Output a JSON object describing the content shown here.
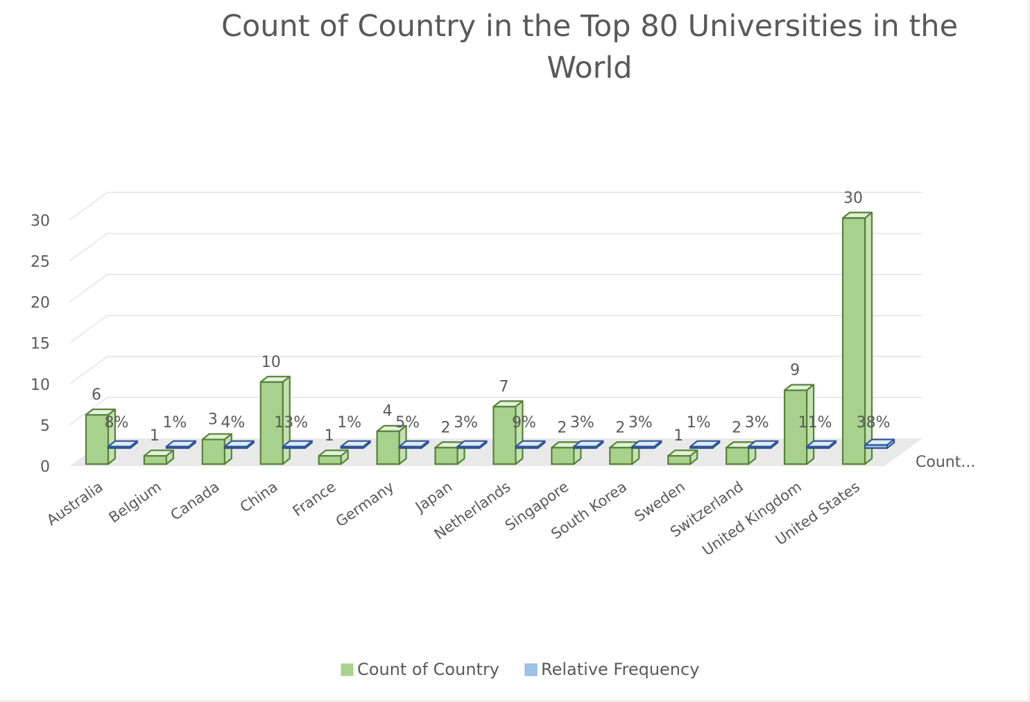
{
  "chart_data": {
    "type": "bar",
    "title": "Count of Country in the Top 80 Universities in the World",
    "categories": [
      "Australia",
      "Belgium",
      "Canada",
      "China",
      "France",
      "Germany",
      "Japan",
      "Netherlands",
      "Singapore",
      "South Korea",
      "Sweden",
      "Switzerland",
      "United Kingdom",
      "United States"
    ],
    "series": [
      {
        "name": "Count of Country",
        "values": [
          6,
          1,
          3,
          10,
          1,
          4,
          2,
          7,
          2,
          2,
          1,
          2,
          9,
          30
        ],
        "labels": [
          "6",
          "1",
          "3",
          "10",
          "1",
          "4",
          "2",
          "7",
          "2",
          "2",
          "1",
          "2",
          "9",
          "30"
        ],
        "color": "#a9d18e",
        "edge": "#548235"
      },
      {
        "name": "Relative Frequency",
        "values": [
          0.08,
          0.01,
          0.04,
          0.13,
          0.01,
          0.05,
          0.03,
          0.09,
          0.03,
          0.03,
          0.01,
          0.03,
          0.11,
          0.38
        ],
        "labels": [
          "8%",
          "1%",
          "4%",
          "13%",
          "1%",
          "5%",
          "3%",
          "9%",
          "3%",
          "3%",
          "1%",
          "3%",
          "11%",
          "38%"
        ],
        "color": "#9dc3e6",
        "edge": "#2f5597"
      }
    ],
    "yticks": [
      "0",
      "5",
      "10",
      "15",
      "20",
      "25",
      "30"
    ],
    "ylim": [
      0,
      30
    ],
    "depth_axis_label": "Count...",
    "grid": true,
    "legend_position": "bottom"
  }
}
